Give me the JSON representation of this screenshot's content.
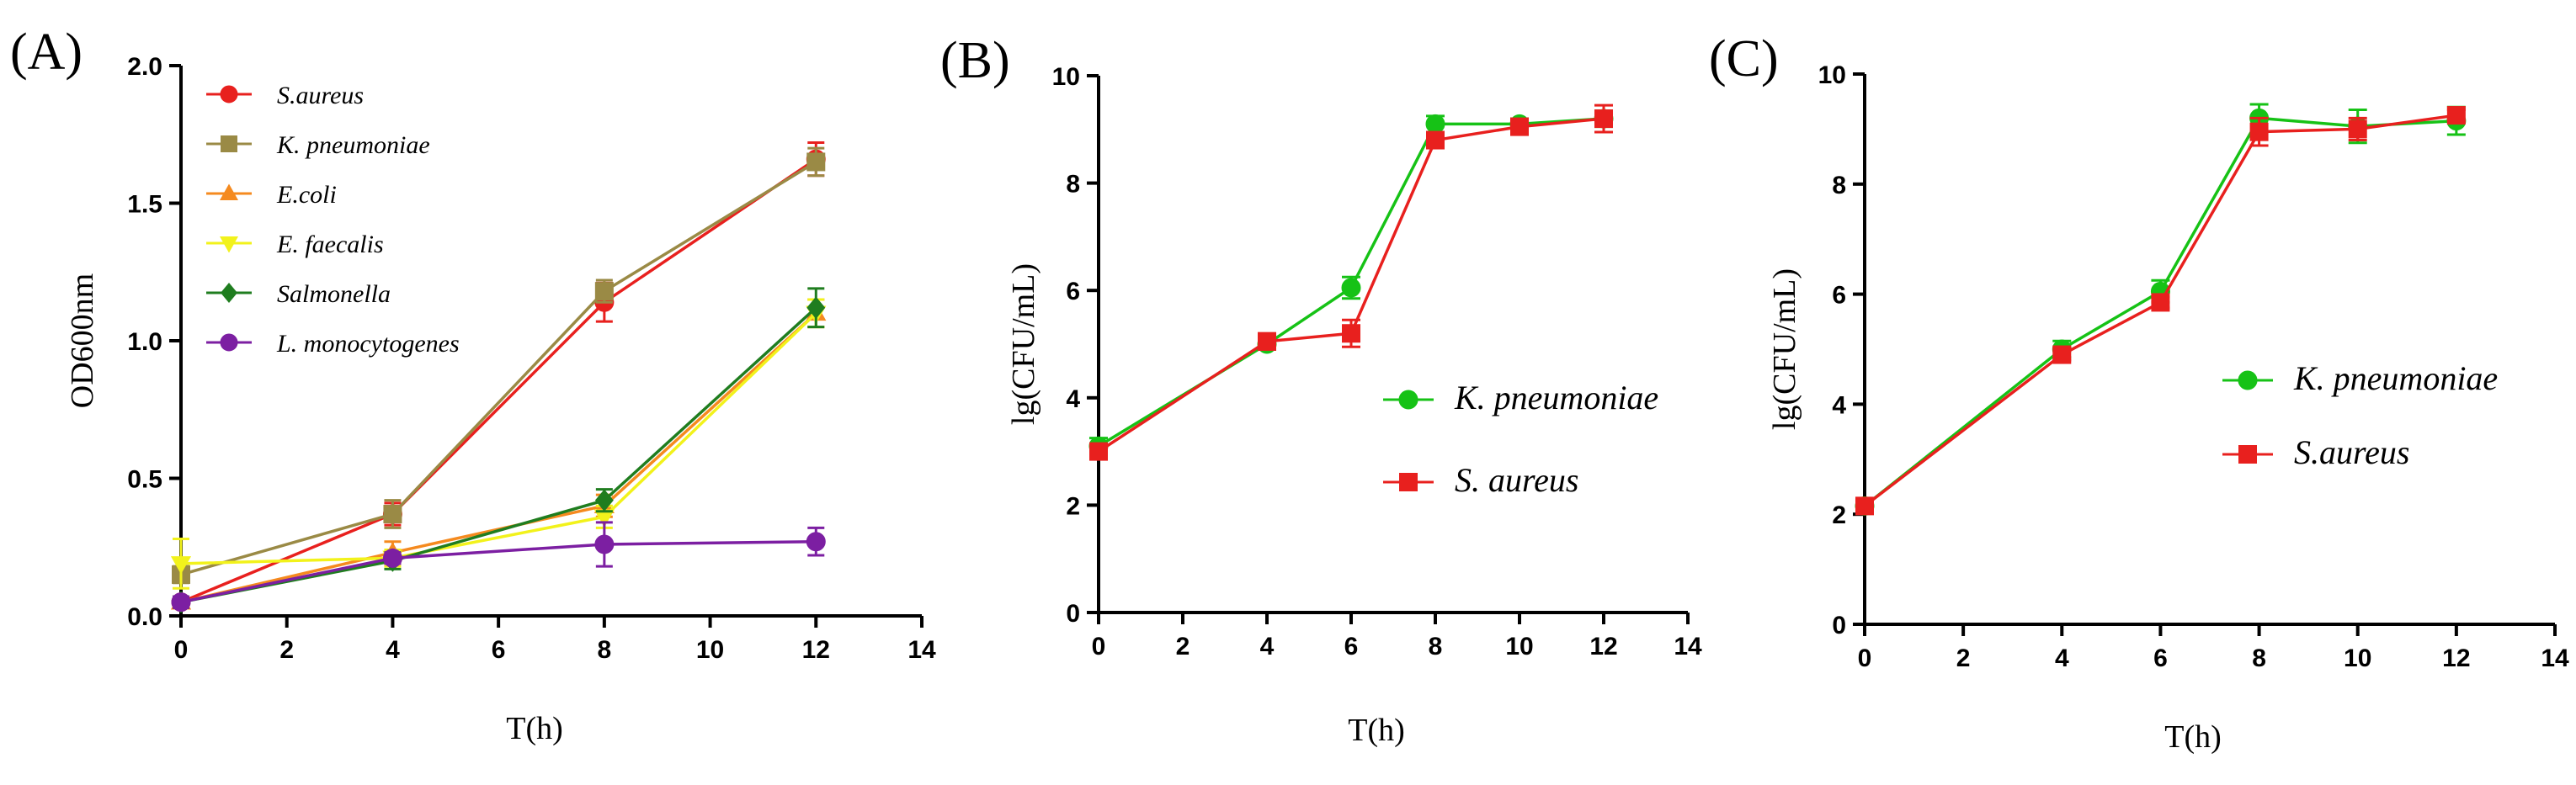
{
  "chart_data": [
    {
      "panel": "(A)",
      "type": "line",
      "xlabel": "T(h)",
      "ylabel": "OD600nm",
      "xlim": [
        0,
        14
      ],
      "ylim": [
        0,
        2.0
      ],
      "xticks": [
        0,
        2,
        4,
        6,
        8,
        10,
        12,
        14
      ],
      "yticks": [
        0.0,
        0.5,
        1.0,
        1.5,
        2.0
      ],
      "ytick_labels": [
        "0.0",
        "0.5",
        "1.0",
        "1.5",
        "2.0"
      ],
      "x": [
        0,
        4,
        8,
        12
      ],
      "legend_position": "top-left",
      "series": [
        {
          "name": "S.aureus",
          "color": "#e8201e",
          "marker": "circle",
          "values": [
            0.05,
            0.37,
            1.14,
            1.66
          ],
          "errors": [
            0.02,
            0.04,
            0.07,
            0.06
          ]
        },
        {
          "name": "K. pneumoniae",
          "color": "#9a8a45",
          "marker": "square",
          "values": [
            0.15,
            0.37,
            1.18,
            1.65
          ],
          "errors": [
            0.03,
            0.05,
            0.04,
            0.05
          ]
        },
        {
          "name": "E.coli",
          "color": "#f58a1f",
          "marker": "triangle-up",
          "values": [
            0.05,
            0.23,
            0.4,
            1.1
          ],
          "errors": [
            0.02,
            0.04,
            0.04,
            0.05
          ]
        },
        {
          "name": "E. faecalis",
          "color": "#f2f21b",
          "marker": "triangle-down",
          "values": [
            0.19,
            0.21,
            0.36,
            1.1
          ],
          "errors": [
            0.09,
            0.03,
            0.04,
            0.05
          ]
        },
        {
          "name": "Salmonella",
          "color": "#1f7d1f",
          "marker": "diamond",
          "values": [
            0.05,
            0.2,
            0.42,
            1.12
          ],
          "errors": [
            0.02,
            0.03,
            0.04,
            0.07
          ]
        },
        {
          "name": "L. monocytogenes",
          "color": "#7c1fa2",
          "marker": "circle",
          "values": [
            0.05,
            0.21,
            0.26,
            0.27
          ],
          "errors": [
            0.02,
            0.02,
            0.08,
            0.05
          ]
        }
      ]
    },
    {
      "panel": "(B)",
      "type": "line",
      "xlabel": "T(h)",
      "ylabel": "lg(CFU/mL)",
      "xlim": [
        0,
        14
      ],
      "ylim": [
        0,
        10
      ],
      "xticks": [
        0,
        2,
        4,
        6,
        8,
        10,
        12,
        14
      ],
      "yticks": [
        0,
        2,
        4,
        6,
        8,
        10
      ],
      "ytick_labels": [
        "0",
        "2",
        "4",
        "6",
        "8",
        "10"
      ],
      "x": [
        0,
        4,
        6,
        8,
        10,
        12
      ],
      "legend_position": "middle-right",
      "series": [
        {
          "name": "K. pneumoniae",
          "color": "#16c216",
          "marker": "circle",
          "values": [
            3.1,
            5.0,
            6.05,
            9.1,
            9.1,
            9.2
          ],
          "errors": [
            0.15,
            0.1,
            0.2,
            0.15,
            0.1,
            0.15
          ]
        },
        {
          "name": "S. aureus",
          "color": "#e8201e",
          "marker": "square",
          "values": [
            3.0,
            5.05,
            5.2,
            8.8,
            9.05,
            9.2
          ],
          "errors": [
            0.1,
            0.15,
            0.25,
            0.1,
            0.1,
            0.25
          ]
        }
      ]
    },
    {
      "panel": "(C)",
      "type": "line",
      "xlabel": "T(h)",
      "ylabel": "lg(CFU/mL)",
      "xlim": [
        0,
        14
      ],
      "ylim": [
        0,
        10
      ],
      "xticks": [
        0,
        2,
        4,
        6,
        8,
        10,
        12,
        14
      ],
      "yticks": [
        0,
        2,
        4,
        6,
        8,
        10
      ],
      "ytick_labels": [
        "0",
        "2",
        "4",
        "6",
        "8",
        "10"
      ],
      "x": [
        0,
        4,
        6,
        8,
        10,
        12
      ],
      "legend_position": "middle-right",
      "series": [
        {
          "name": "K. pneumoniae",
          "color": "#16c216",
          "marker": "circle",
          "values": [
            2.15,
            5.0,
            6.05,
            9.2,
            9.05,
            9.15
          ],
          "errors": [
            0.1,
            0.15,
            0.2,
            0.25,
            0.3,
            0.25
          ]
        },
        {
          "name": "S.aureus",
          "color": "#e8201e",
          "marker": "square",
          "values": [
            2.15,
            4.9,
            5.85,
            8.95,
            9.0,
            9.25
          ],
          "errors": [
            0.1,
            0.1,
            0.1,
            0.25,
            0.2,
            0.1
          ]
        }
      ]
    }
  ]
}
